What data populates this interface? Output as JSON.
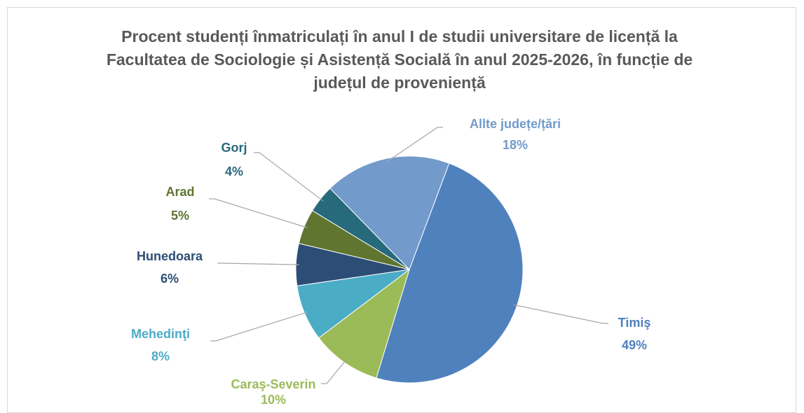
{
  "chart_data": {
    "type": "pie",
    "title": "Procent studenți înmatriculați în anul I de studii universitare de licență la Facultatea de Sociologie și Asistență Socială în anul 2025-2026, în funcție de județul de proveniență",
    "categories": [
      "Timiş",
      "Caraş-Severin",
      "Mehedinţi",
      "Hunedoara",
      "Arad",
      "Gorj",
      "Allte județe/țări"
    ],
    "values": [
      49,
      10,
      8,
      6,
      5,
      4,
      18
    ],
    "value_labels": [
      "49%",
      "10%",
      "8%",
      "6%",
      "5%",
      "4%",
      "18%"
    ],
    "colors": [
      "#4f81bd",
      "#9bbb59",
      "#4bacc6",
      "#2c4d75",
      "#5f7530",
      "#276a7c",
      "#729aca"
    ]
  }
}
